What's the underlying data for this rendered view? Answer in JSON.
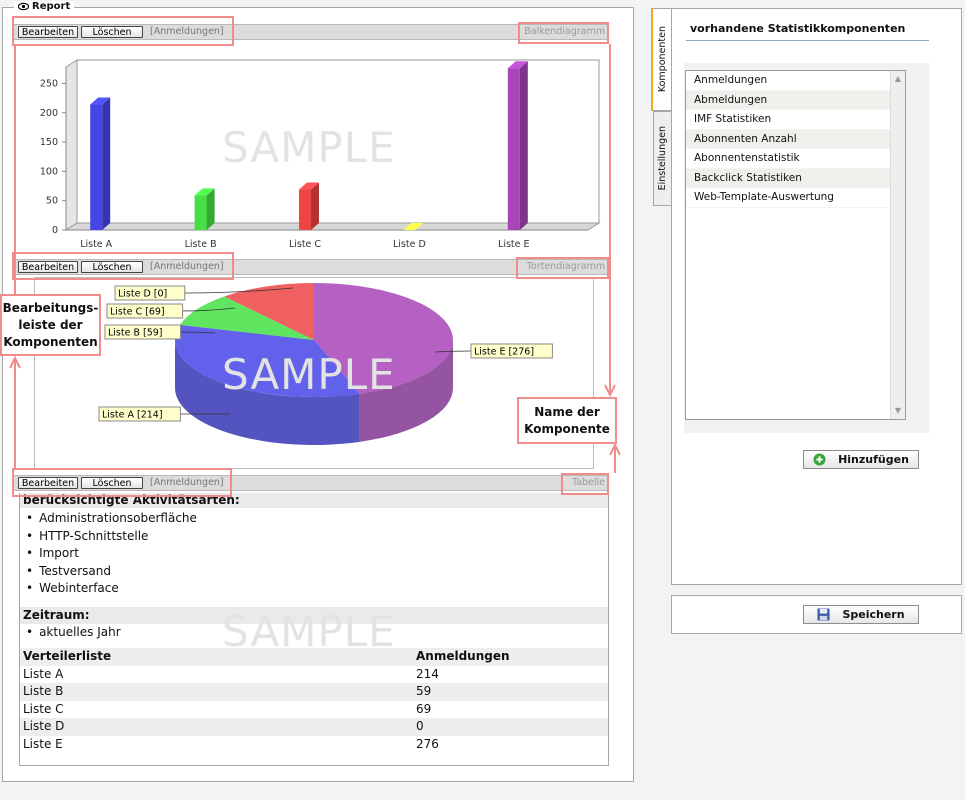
{
  "report": {
    "title": "Report",
    "components": [
      {
        "edit_label": "Bearbeiten",
        "delete_label": "Löschen",
        "registrations_label": "[Anmeldungen]",
        "component_name": "Balkendiagramm"
      },
      {
        "edit_label": "Bearbeiten",
        "delete_label": "Löschen",
        "registrations_label": "[Anmeldungen]",
        "component_name": "Tortendiagramm"
      },
      {
        "edit_label": "Bearbeiten",
        "delete_label": "Löschen",
        "registrations_label": "[Anmeldungen]",
        "component_name": "Tabelle"
      }
    ],
    "watermark": "SAMPLE"
  },
  "chart_data": [
    {
      "type": "bar",
      "categories": [
        "Liste A",
        "Liste B",
        "Liste C",
        "Liste D",
        "Liste E"
      ],
      "values": [
        214,
        59,
        69,
        0,
        276
      ],
      "colors": [
        "#4545e8",
        "#44e044",
        "#ee4444",
        "#f0f040",
        "#a845b8"
      ],
      "yticks": [
        0,
        50,
        100,
        150,
        200,
        250
      ],
      "ylim": [
        0,
        290
      ],
      "grid": false,
      "title": "",
      "xlabel": "",
      "ylabel": ""
    },
    {
      "type": "pie",
      "labels": [
        "Liste A",
        "Liste B",
        "Liste C",
        "Liste D",
        "Liste E"
      ],
      "values": [
        214,
        59,
        69,
        0,
        276
      ],
      "slice_labels": [
        "Liste A [214]",
        "Liste B [59]",
        "Liste C [69]",
        "Liste D [0]",
        "Liste E [276]"
      ],
      "colors": [
        "#4545e8",
        "#44e044",
        "#ee4444",
        "#f0f040",
        "#a845b8"
      ]
    }
  ],
  "table": {
    "activities_heading": "berücksichtigte Aktivitätsarten:",
    "activities": [
      "Administrationsoberfläche",
      "HTTP-Schnittstelle",
      "Import",
      "Testversand",
      "Webinterface"
    ],
    "period_heading": "Zeitraum:",
    "period": "aktuelles Jahr",
    "col_list": "Verteilerliste",
    "col_registrations": "Anmeldungen",
    "rows": [
      {
        "list": "Liste A",
        "value": "214"
      },
      {
        "list": "Liste B",
        "value": "59"
      },
      {
        "list": "Liste C",
        "value": "69"
      },
      {
        "list": "Liste D",
        "value": "0"
      },
      {
        "list": "Liste E",
        "value": "276"
      }
    ]
  },
  "callouts": {
    "toolbar": "Bearbeitungs-\nleiste der\nKomponenten",
    "name": "Name der\nKomponente"
  },
  "side": {
    "tabs": [
      "Komponenten",
      "Einstellungen"
    ],
    "title": "vorhandene Statistikkomponenten",
    "items": [
      "Anmeldungen",
      "Abmeldungen",
      "IMF Statistiken",
      "Abonnenten Anzahl",
      "Abonnentenstatistik",
      "Backclick Statistiken",
      "Web-Template-Auswertung"
    ],
    "add_label": "Hinzufügen",
    "save_label": "Speichern"
  }
}
